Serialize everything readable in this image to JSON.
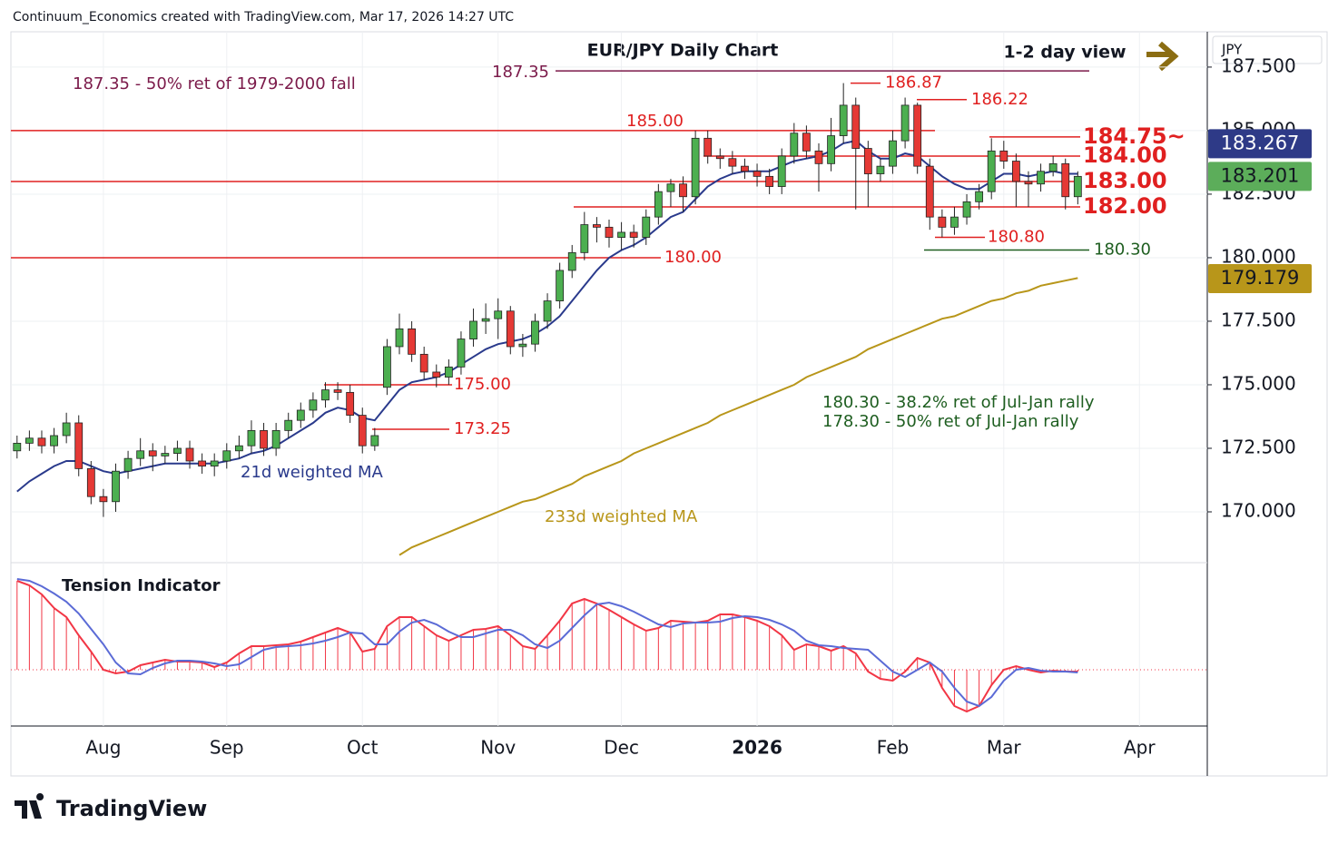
{
  "header": "Continuum_Economics created with TradingView.com, Mar 17, 2026 14:27 UTC",
  "footer_logo": "TradingView",
  "chart_data": [
    {
      "type": "candlestick",
      "title": "EUR/JPY Daily Chart",
      "subtitle": "1-2 day view",
      "axis_unit": "JPY",
      "categories": [
        null,
        null,
        null,
        null,
        null,
        null,
        null,
        "Aug",
        null,
        null,
        null,
        null,
        null,
        null,
        null,
        null,
        null,
        "Sep",
        null,
        null,
        null,
        null,
        null,
        null,
        null,
        null,
        null,
        null,
        "Oct",
        null,
        null,
        null,
        null,
        null,
        null,
        null,
        null,
        null,
        null,
        "Nov",
        null,
        null,
        null,
        null,
        null,
        null,
        null,
        null,
        null,
        "Dec",
        null,
        null,
        null,
        null,
        null,
        null,
        null,
        null,
        null,
        null,
        "2026",
        null,
        null,
        null,
        null,
        null,
        null,
        null,
        null,
        null,
        null,
        "Feb",
        null,
        null,
        null,
        null,
        null,
        null,
        null,
        null,
        "Mar",
        null,
        null,
        null,
        null,
        null,
        null,
        null,
        null,
        null,
        null,
        "Apr",
        null,
        null,
        null,
        null,
        null
      ],
      "open": [
        172.4,
        172.7,
        172.9,
        172.6,
        173.0,
        173.5,
        171.7,
        170.6,
        170.4,
        171.6,
        172.1,
        172.4,
        172.2,
        172.3,
        172.5,
        172.0,
        171.8,
        172.0,
        172.4,
        172.6,
        173.2,
        172.5,
        173.2,
        173.6,
        174.0,
        174.4,
        174.8,
        174.7,
        173.8,
        172.6,
        174.9,
        176.5,
        177.2,
        176.2,
        175.5,
        175.3,
        175.7,
        176.8,
        177.5,
        177.6,
        177.9,
        176.5,
        176.6,
        177.5,
        178.3,
        179.5,
        180.2,
        181.3,
        181.2,
        180.8,
        181.0,
        180.8,
        181.6,
        182.6,
        182.9,
        182.4,
        184.7,
        184.0,
        183.9,
        183.6,
        183.4,
        183.2,
        182.8,
        184.0,
        184.9,
        184.2,
        183.7,
        184.8,
        186.0,
        184.3,
        183.3,
        183.6,
        184.6,
        186.0,
        183.6,
        181.6,
        181.2,
        181.6,
        182.2,
        182.6,
        184.2,
        183.8,
        183.0,
        182.9,
        183.4,
        183.7,
        182.4,
        null,
        null,
        null,
        null,
        null,
        null,
        null,
        null,
        null,
        null
      ],
      "high": [
        173.0,
        173.2,
        173.2,
        173.3,
        173.9,
        173.8,
        172.0,
        170.9,
        171.9,
        172.4,
        172.9,
        172.7,
        172.6,
        172.8,
        172.8,
        172.3,
        172.3,
        172.7,
        173.0,
        173.6,
        173.5,
        173.5,
        173.9,
        174.3,
        174.7,
        175.1,
        175.1,
        175.0,
        174.1,
        173.3,
        176.8,
        177.8,
        177.5,
        176.5,
        175.8,
        176.0,
        177.1,
        178.0,
        178.2,
        178.4,
        178.1,
        177.0,
        177.8,
        178.6,
        179.8,
        180.5,
        181.8,
        181.6,
        181.5,
        181.4,
        181.3,
        181.9,
        182.9,
        183.1,
        183.2,
        185.0,
        185.0,
        184.3,
        184.2,
        183.9,
        183.7,
        183.5,
        184.3,
        185.3,
        185.2,
        184.5,
        185.5,
        186.87,
        186.3,
        184.6,
        183.9,
        185.0,
        186.3,
        186.1,
        183.9,
        181.9,
        182.0,
        182.5,
        182.9,
        184.7,
        184.6,
        184.1,
        183.4,
        183.7,
        184.0,
        183.9,
        183.4,
        null,
        null,
        null,
        null,
        null,
        null,
        null,
        null,
        null,
        null
      ],
      "low": [
        172.1,
        172.4,
        172.3,
        172.3,
        172.7,
        171.4,
        170.3,
        169.8,
        170.0,
        171.3,
        171.8,
        171.6,
        171.9,
        172.0,
        171.7,
        171.5,
        171.4,
        171.7,
        172.1,
        172.3,
        172.2,
        172.2,
        172.9,
        173.3,
        173.7,
        174.1,
        174.4,
        173.5,
        172.3,
        172.4,
        174.6,
        176.2,
        175.9,
        175.2,
        174.9,
        175.0,
        175.4,
        176.5,
        177.0,
        176.8,
        176.2,
        176.1,
        176.3,
        177.2,
        178.0,
        179.2,
        179.9,
        180.6,
        180.4,
        180.3,
        180.4,
        180.5,
        181.3,
        182.0,
        181.8,
        182.1,
        183.7,
        183.5,
        183.3,
        183.1,
        182.8,
        182.5,
        182.5,
        183.7,
        183.9,
        182.6,
        183.4,
        184.5,
        181.9,
        182.0,
        183.0,
        183.3,
        184.3,
        183.3,
        181.1,
        180.8,
        180.9,
        181.3,
        181.9,
        182.3,
        183.5,
        182.0,
        182.0,
        182.6,
        183.2,
        181.9,
        182.1,
        null,
        null,
        null,
        null,
        null,
        null,
        null,
        null,
        null,
        null
      ],
      "close": [
        172.7,
        172.9,
        172.6,
        173.0,
        173.5,
        171.7,
        170.6,
        170.4,
        171.6,
        172.1,
        172.4,
        172.2,
        172.3,
        172.5,
        172.0,
        171.8,
        172.0,
        172.4,
        172.6,
        173.2,
        172.5,
        173.2,
        173.6,
        174.0,
        174.4,
        174.8,
        174.7,
        173.8,
        172.6,
        173.0,
        176.5,
        177.2,
        176.2,
        175.5,
        175.3,
        175.7,
        176.8,
        177.5,
        177.6,
        177.9,
        176.5,
        176.6,
        177.5,
        178.3,
        179.5,
        180.2,
        181.3,
        181.2,
        180.8,
        181.0,
        180.8,
        181.6,
        182.6,
        182.9,
        182.4,
        184.7,
        184.0,
        183.9,
        183.6,
        183.4,
        183.2,
        182.8,
        184.0,
        184.9,
        184.2,
        183.7,
        184.8,
        186.0,
        184.3,
        183.3,
        183.6,
        184.6,
        186.0,
        183.6,
        181.6,
        181.2,
        181.6,
        182.2,
        182.6,
        184.2,
        183.8,
        183.0,
        182.9,
        183.4,
        183.7,
        182.4,
        183.2,
        null,
        null,
        null,
        null,
        null,
        null,
        null,
        null,
        null,
        null
      ],
      "up_color": "#4caf50",
      "down_color": "#e53935",
      "series": [
        {
          "name": "21d weighted MA",
          "color": "#2a3a8c",
          "values": [
            170.8,
            171.2,
            171.5,
            171.8,
            172.0,
            172.0,
            171.8,
            171.6,
            171.5,
            171.6,
            171.7,
            171.8,
            171.9,
            171.9,
            171.9,
            171.9,
            171.9,
            172.0,
            172.1,
            172.3,
            172.4,
            172.6,
            172.9,
            173.2,
            173.5,
            173.9,
            174.1,
            174.0,
            173.7,
            173.6,
            174.2,
            174.8,
            175.1,
            175.2,
            175.3,
            175.5,
            175.8,
            176.1,
            176.4,
            176.6,
            176.7,
            176.8,
            177.0,
            177.3,
            177.7,
            178.3,
            178.9,
            179.5,
            180.0,
            180.3,
            180.5,
            180.8,
            181.2,
            181.6,
            181.8,
            182.3,
            182.8,
            183.1,
            183.3,
            183.4,
            183.4,
            183.4,
            183.6,
            183.8,
            183.9,
            184.0,
            184.2,
            184.5,
            184.6,
            184.2,
            183.9,
            183.9,
            184.1,
            184.0,
            183.6,
            183.2,
            182.9,
            182.7,
            182.7,
            183.0,
            183.3,
            183.3,
            183.2,
            183.3,
            183.4,
            183.3,
            183.3,
            null,
            null,
            null,
            null,
            null,
            null,
            null,
            null,
            null,
            null
          ]
        },
        {
          "name": "233d weighted MA",
          "color": "#b8961a",
          "values": [
            null,
            null,
            null,
            null,
            null,
            null,
            null,
            null,
            null,
            null,
            null,
            null,
            null,
            null,
            null,
            null,
            null,
            null,
            null,
            null,
            null,
            null,
            null,
            null,
            null,
            null,
            null,
            null,
            null,
            null,
            null,
            168.3,
            168.6,
            168.8,
            169.0,
            169.2,
            169.4,
            169.6,
            169.8,
            170.0,
            170.2,
            170.4,
            170.5,
            170.7,
            170.9,
            171.1,
            171.4,
            171.6,
            171.8,
            172.0,
            172.3,
            172.5,
            172.7,
            172.9,
            173.1,
            173.3,
            173.5,
            173.8,
            174.0,
            174.2,
            174.4,
            174.6,
            174.8,
            175.0,
            175.3,
            175.5,
            175.7,
            175.9,
            176.1,
            176.4,
            176.6,
            176.8,
            177.0,
            177.2,
            177.4,
            177.6,
            177.7,
            177.9,
            178.1,
            178.3,
            178.4,
            178.6,
            178.7,
            178.9,
            179.0,
            179.1,
            179.2,
            null,
            null,
            null,
            null,
            null,
            null,
            null,
            null,
            null,
            null
          ]
        }
      ],
      "levels": [
        {
          "value": 187.35,
          "color": "#7b1a4a"
        },
        {
          "value": 186.87,
          "color": "#e02020"
        },
        {
          "value": 186.22,
          "color": "#e02020"
        },
        {
          "value": 185,
          "label": "185.00",
          "color": "#e02020"
        },
        {
          "value": 184.75,
          "label": "184.75~",
          "color": "#e02020"
        },
        {
          "value": 184,
          "label": "184.00",
          "color": "#e02020"
        },
        {
          "value": 183,
          "label": "183.00",
          "color": "#e02020"
        },
        {
          "value": 182,
          "label": "182.00",
          "color": "#e02020"
        },
        {
          "value": 180.8,
          "label": "180.80",
          "color": "#e02020"
        },
        {
          "value": 180.3,
          "label": "180.30",
          "color": "#1e5e20"
        },
        {
          "value": 180,
          "label": "180.00",
          "color": "#e02020"
        },
        {
          "value": 175,
          "label": "175.00",
          "color": "#e02020"
        },
        {
          "value": 173.25,
          "color": "#e02020"
        }
      ],
      "annotations": [
        {
          "text": "187.35 - 50% ret of 1979-2000 fall",
          "color": "#7b1a4a"
        },
        {
          "text": "180.30 - 38.2% ret of Jul-Jan rally",
          "color": "#1e5e20"
        },
        {
          "text": "178.30 - 50% ret of Jul-Jan rally",
          "color": "#1e5e20"
        }
      ],
      "badges": [
        {
          "value": 183.267,
          "color": "#2e3a87"
        },
        {
          "value": 183.201,
          "color": "#5cad5a"
        },
        {
          "value": 179.179,
          "color": "#b8961a"
        }
      ],
      "ylim": [
        168,
        188.89
      ],
      "yticks": [
        {
          "value": 170,
          "label": "170.000"
        },
        {
          "value": 172.5,
          "label": "172.500"
        },
        {
          "value": 175,
          "label": "175.000"
        },
        {
          "value": 177.5,
          "label": "177.500"
        },
        {
          "value": 180,
          "label": "180.000"
        },
        {
          "value": 182.5,
          "label": "182.500"
        },
        {
          "value": 185,
          "label": "185.000"
        },
        {
          "value": 187.5,
          "label": "187.500"
        }
      ],
      "grid": true
    },
    {
      "type": "tension",
      "title": "Tension Indicator",
      "ylim": [
        -62,
        108
      ],
      "series": [
        {
          "color": "#f23645",
          "histogram": true,
          "values": [
            98,
            93,
            83,
            68,
            58,
            38,
            20,
            0,
            -4,
            -2,
            5,
            8,
            11,
            9,
            9,
            8,
            3,
            8,
            18,
            26,
            26,
            27,
            28,
            31,
            36,
            41,
            46,
            41,
            20,
            23,
            48,
            58,
            58,
            48,
            38,
            32,
            38,
            44,
            45,
            48,
            38,
            26,
            23,
            38,
            54,
            73,
            78,
            73,
            66,
            58,
            50,
            43,
            46,
            54,
            53,
            52,
            54,
            61,
            61,
            58,
            54,
            48,
            38,
            22,
            28,
            26,
            21,
            26,
            18,
            -2,
            -10,
            -12,
            -2,
            13,
            8,
            -20,
            -40,
            -46,
            -40,
            -17,
            0,
            4,
            0,
            -3,
            -1,
            -2,
            -2,
            null,
            null,
            null,
            null,
            null,
            null,
            null,
            null,
            null,
            null
          ]
        },
        {
          "color": "#5b6bd6",
          "values": [
            100,
            98,
            92,
            84,
            75,
            62,
            45,
            28,
            8,
            -4,
            -5,
            2,
            7,
            10,
            10,
            9,
            7,
            4,
            6,
            14,
            22,
            25,
            26,
            27,
            29,
            32,
            36,
            41,
            40,
            28,
            28,
            42,
            52,
            55,
            50,
            42,
            36,
            36,
            40,
            44,
            44,
            38,
            28,
            24,
            32,
            46,
            60,
            72,
            74,
            70,
            64,
            57,
            50,
            47,
            51,
            52,
            52,
            53,
            57,
            59,
            58,
            55,
            50,
            43,
            32,
            27,
            26,
            24,
            23,
            22,
            10,
            -2,
            -8,
            0,
            8,
            -2,
            -20,
            -35,
            -40,
            -30,
            -12,
            0,
            2,
            -1,
            -2,
            -2,
            -3,
            null,
            null,
            null,
            null,
            null,
            null,
            null,
            null,
            null,
            null
          ]
        }
      ]
    }
  ]
}
